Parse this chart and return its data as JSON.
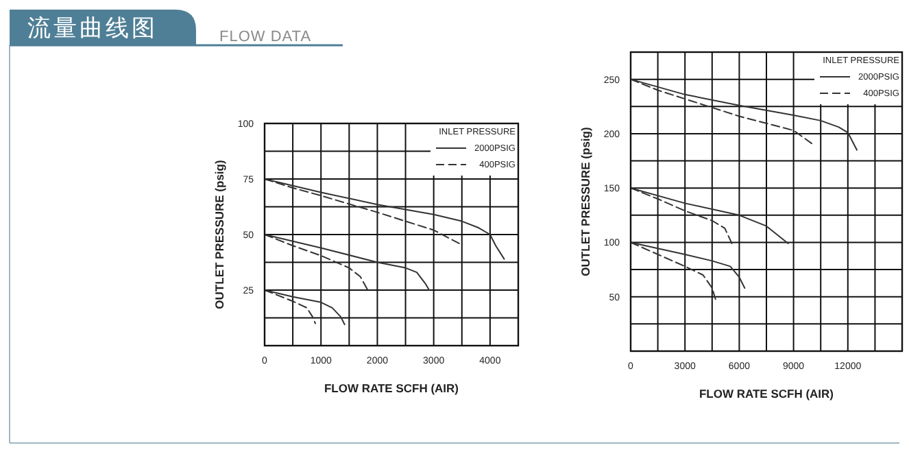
{
  "chart_data": [
    {
      "type": "line",
      "title": "流量曲线图",
      "subtitle": "FLOW DATA",
      "xlabel": "FLOW RATE  SCFH  (AIR)",
      "ylabel": "OUTLET  PRESSURE  (psig)",
      "legend_title": "INLET PRESSURE",
      "legend": "top right",
      "grid": true,
      "xlim": [
        0,
        4500
      ],
      "ylim": [
        0,
        100
      ],
      "xticks": [
        0,
        {
          "value": 500,
          "label": null
        },
        1000,
        {
          "value": 1500,
          "label": null
        },
        2000,
        {
          "value": 2500,
          "label": null
        },
        3000,
        {
          "value": 3500,
          "label": null
        },
        4000,
        {
          "value": 4500,
          "label": null
        }
      ],
      "yticks": [
        {
          "value": 0,
          "label": null
        },
        {
          "value": 12.5,
          "label": null
        },
        25,
        {
          "value": 37.5,
          "label": null
        },
        50,
        {
          "value": 62.5,
          "label": null
        },
        75,
        {
          "value": 87.5,
          "label": null
        },
        100
      ],
      "series": [
        {
          "name": "2000PSIG",
          "color": "#333333",
          "line_style": "solid",
          "x": [
            0,
            1000,
            2000,
            3000,
            3500,
            3800,
            4000,
            4100,
            4250
          ],
          "values": [
            75,
            69,
            63.5,
            59,
            56,
            53,
            50,
            45,
            39
          ]
        },
        {
          "name": "400PSIG",
          "color": "#333333",
          "line_style": "dashed",
          "x": [
            0,
            500,
            1000,
            2000,
            3000,
            3450
          ],
          "values": [
            75,
            71,
            67.5,
            60,
            52,
            46
          ]
        },
        {
          "color": "#333333",
          "line_style": "solid",
          "x": [
            0,
            1000,
            2000,
            2500,
            2700,
            2850,
            2920
          ],
          "values": [
            50,
            44,
            37.5,
            35,
            33,
            28,
            25
          ]
        },
        {
          "color": "#333333",
          "line_style": "dashed",
          "x": [
            0,
            500,
            1000,
            1500,
            1700,
            1830
          ],
          "values": [
            50,
            45,
            40.5,
            35,
            31,
            25
          ]
        },
        {
          "color": "#333333",
          "line_style": "solid",
          "x": [
            0,
            500,
            1000,
            1200,
            1350,
            1420
          ],
          "values": [
            25,
            22,
            19.5,
            17,
            13,
            9.5
          ]
        },
        {
          "color": "#333333",
          "line_style": "dashed",
          "x": [
            0,
            500,
            750,
            850,
            900
          ],
          "values": [
            25,
            20,
            17,
            13,
            10
          ]
        }
      ]
    },
    {
      "type": "line",
      "xlabel": "FLOW RATE  SCFH  (AIR)",
      "ylabel": "OUTLET  PRESSURE  (psig)",
      "legend_title": "INLET PRESSURE",
      "legend": "top right",
      "grid": true,
      "xlim": [
        0,
        15000
      ],
      "ylim": [
        0,
        275
      ],
      "xticks": [
        0,
        {
          "value": 1500,
          "label": null
        },
        3000,
        {
          "value": 4500,
          "label": null
        },
        6000,
        {
          "value": 7500,
          "label": null
        },
        9000,
        {
          "value": 10500,
          "label": null
        },
        12000,
        {
          "value": 13500,
          "label": null
        },
        {
          "value": 15000,
          "label": null
        }
      ],
      "yticks": [
        {
          "value": 0,
          "label": null
        },
        {
          "value": 25,
          "label": null
        },
        50,
        {
          "value": 75,
          "label": null
        },
        100,
        {
          "value": 125,
          "label": null
        },
        150,
        {
          "value": 175,
          "label": null
        },
        200,
        {
          "value": 225,
          "label": null
        },
        250,
        {
          "value": 275,
          "label": null
        }
      ],
      "series": [
        {
          "name": "2000PSIG",
          "color": "#333333",
          "line_style": "solid",
          "x": [
            0,
            3000,
            6000,
            9000,
            10500,
            11500,
            12000,
            12500
          ],
          "values": [
            250,
            236,
            226,
            217,
            212,
            206,
            201,
            185
          ]
        },
        {
          "name": "400PSIG",
          "color": "#333333",
          "line_style": "dashed",
          "x": [
            0,
            1500,
            3000,
            6000,
            9000,
            10000
          ],
          "values": [
            250,
            240,
            232,
            216,
            203,
            191
          ]
        },
        {
          "color": "#333333",
          "line_style": "solid",
          "x": [
            0,
            3000,
            6000,
            7500,
            8700
          ],
          "values": [
            150,
            136,
            125,
            115,
            99
          ]
        },
        {
          "color": "#333333",
          "line_style": "dashed",
          "x": [
            0,
            1500,
            3000,
            4500,
            5200,
            5650
          ],
          "values": [
            150,
            140,
            129,
            120,
            113,
            97
          ]
        },
        {
          "color": "#333333",
          "line_style": "solid",
          "x": [
            0,
            3000,
            4500,
            5500,
            6000,
            6300
          ],
          "values": [
            100,
            89,
            83,
            78,
            68,
            58
          ]
        },
        {
          "color": "#333333",
          "line_style": "dashed",
          "x": [
            0,
            1500,
            3000,
            4000,
            4500,
            4700
          ],
          "values": [
            100,
            89,
            78,
            70,
            58,
            47
          ]
        }
      ]
    }
  ]
}
